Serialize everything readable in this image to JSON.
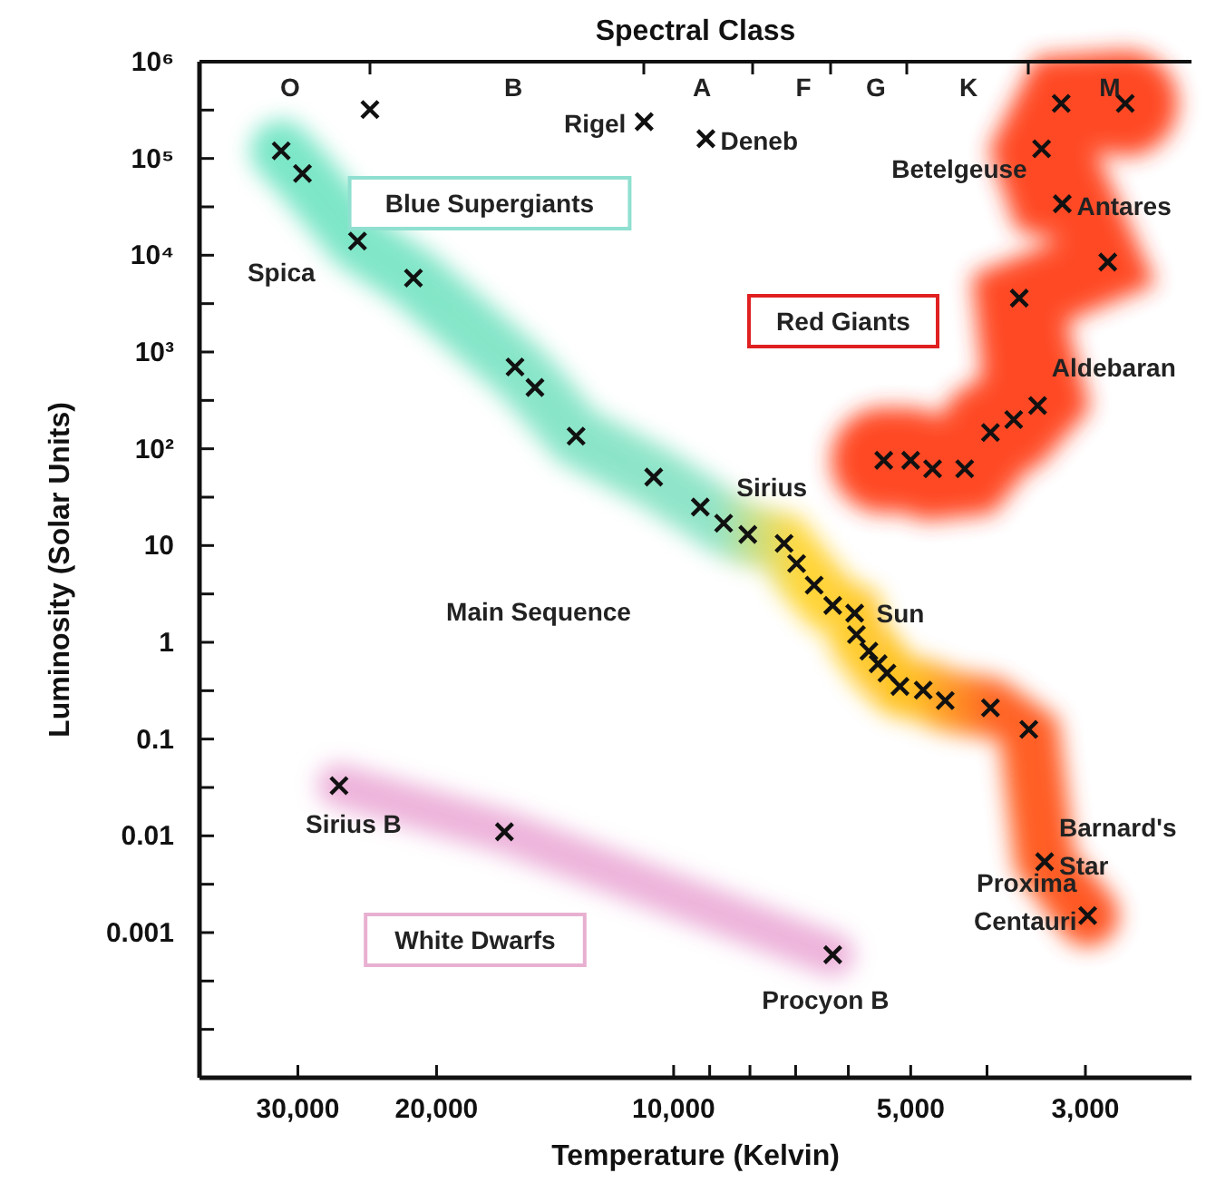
{
  "chart_data": {
    "type": "scatter",
    "title": "Spectral Class",
    "xlabel": "Temperature (Kelvin)",
    "ylabel": "Luminosity (Solar Units)",
    "log": "xy",
    "marker": "cross",
    "grid": false,
    "xlim": [
      40000,
      2200
    ],
    "ylim": [
      3.16e-05,
      1000000
    ],
    "xticks": [
      {
        "value": 30000,
        "label": "30,000"
      },
      {
        "value": 20000,
        "label": "20,000"
      },
      {
        "value": 10000,
        "label": "10,000"
      },
      {
        "value": 9000,
        "label": null
      },
      {
        "value": 8000,
        "label": null
      },
      {
        "value": 7000,
        "label": null
      },
      {
        "value": 6000,
        "label": null
      },
      {
        "value": 5000,
        "label": "5,000"
      },
      {
        "value": 4000,
        "label": null
      },
      {
        "value": 3000,
        "label": "3,000"
      }
    ],
    "yticks": [
      {
        "value": 1000000,
        "label": "10⁶"
      },
      {
        "value": 316228,
        "label": null
      },
      {
        "value": 100000,
        "label": "10⁵"
      },
      {
        "value": 31623,
        "label": null
      },
      {
        "value": 10000,
        "label": "10⁴"
      },
      {
        "value": 3162,
        "label": null
      },
      {
        "value": 1000,
        "label": "10³"
      },
      {
        "value": 316,
        "label": null
      },
      {
        "value": 100,
        "label": "10²"
      },
      {
        "value": 31.6,
        "label": null
      },
      10,
      {
        "value": 3.16,
        "label": null
      },
      1,
      {
        "value": 0.316,
        "label": null
      },
      0.1,
      {
        "value": 0.0316,
        "label": null
      },
      0.01,
      {
        "value": 0.00316,
        "label": null
      },
      0.001,
      {
        "value": 0.000316,
        "label": null
      },
      {
        "value": 0.0001,
        "label": null
      }
    ],
    "series": [
      {
        "color": "#111111",
        "x": [
          31500,
          29600,
          25200,
          21400,
          15900,
          15000,
          13300,
          10600,
          9250,
          8640,
          8050,
          7240,
          6980,
          6630,
          6280,
          5890,
          5860,
          5650,
          5500,
          5360,
          5160,
          4820,
          4520,
          3960,
          3540,
          3380,
          2980
        ],
        "values": [
          120000,
          70000,
          14000,
          5800,
          700,
          430,
          135,
          51,
          25,
          17,
          13,
          10.5,
          6.5,
          3.9,
          2.4,
          2.0,
          1.2,
          0.81,
          0.6,
          0.48,
          0.35,
          0.32,
          0.25,
          0.21,
          0.126,
          0.0054,
          0.0015
        ]
      },
      {
        "color": "#111111",
        "x": [
          5410,
          5000,
          4690,
          4270,
          3960,
          3700,
          3450,
          3640,
          2810,
          3210,
          3410,
          3220,
          2670
        ],
        "values": [
          76,
          76,
          62,
          62,
          147,
          200,
          280,
          3600,
          8500,
          34000,
          126000,
          370000,
          370000
        ]
      },
      {
        "color": "#111111",
        "x": [
          26600,
          16400,
          6280
        ],
        "values": [
          0.033,
          0.011,
          0.00059
        ]
      },
      {
        "color": "#111111",
        "x": [
          24300,
          10900,
          9100
        ],
        "values": [
          320000,
          240000,
          160000
        ]
      }
    ],
    "annotations": [
      {
        "text": "Rigel",
        "x": 10900,
        "y": 240000
      },
      {
        "text": "Deneb",
        "x": 9100,
        "y": 160000
      },
      {
        "text": "Betelgeuse",
        "x": 3410,
        "y": 126000
      },
      {
        "text": "Antares",
        "x": 3210,
        "y": 34000
      },
      {
        "text": "Aldebaran",
        "x": 3450,
        "y": 280
      },
      {
        "text": "Spica",
        "x": 25200,
        "y": 14000
      },
      {
        "text": "Sirius",
        "x": 9250,
        "y": 25
      },
      {
        "text": "Sun",
        "x": 5890,
        "y": 2.0
      },
      {
        "text": "Barnard's Star",
        "x": 3380,
        "y": 0.0054
      },
      {
        "text": "Proxima Centauri",
        "x": 2980,
        "y": 0.0015
      },
      {
        "text": "Sirius B",
        "x": 26600,
        "y": 0.033
      },
      {
        "text": "Procyon B",
        "x": 6280,
        "y": 0.00059
      },
      "Blue Supergiants",
      "Red Giants",
      "Main Sequence",
      "White Dwarfs",
      "O",
      "B",
      "A",
      "F",
      "G",
      "K",
      "M"
    ]
  }
}
